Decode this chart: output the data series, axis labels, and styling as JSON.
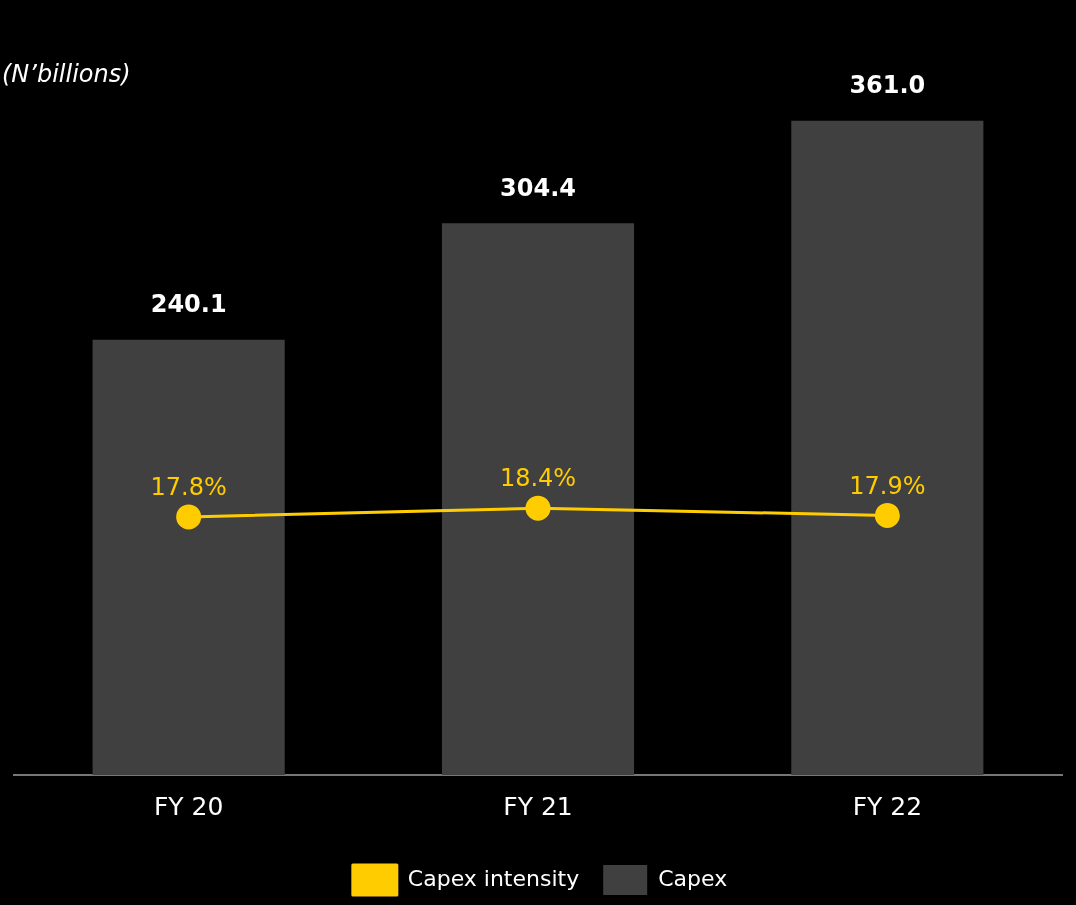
{
  "chart_data": {
    "type": "bar",
    "ylabel": "(N’billions)",
    "categories": [
      "FY 20",
      "FY 21",
      "FY 22"
    ],
    "series": [
      {
        "name": "Capex intensity",
        "type": "line",
        "axis": "y2",
        "color": "#ffcc00",
        "marker": "circle",
        "values": [
          17.8,
          18.4,
          17.9
        ],
        "value_labels": [
          "17.8%",
          "18.4%",
          "17.9%"
        ]
      },
      {
        "name": "Capex",
        "color": "#404040",
        "values": [
          240.1,
          304.4,
          361.0
        ],
        "value_labels": [
          "240.1",
          "304.4",
          "361.0"
        ]
      }
    ],
    "legend": "bottom"
  }
}
